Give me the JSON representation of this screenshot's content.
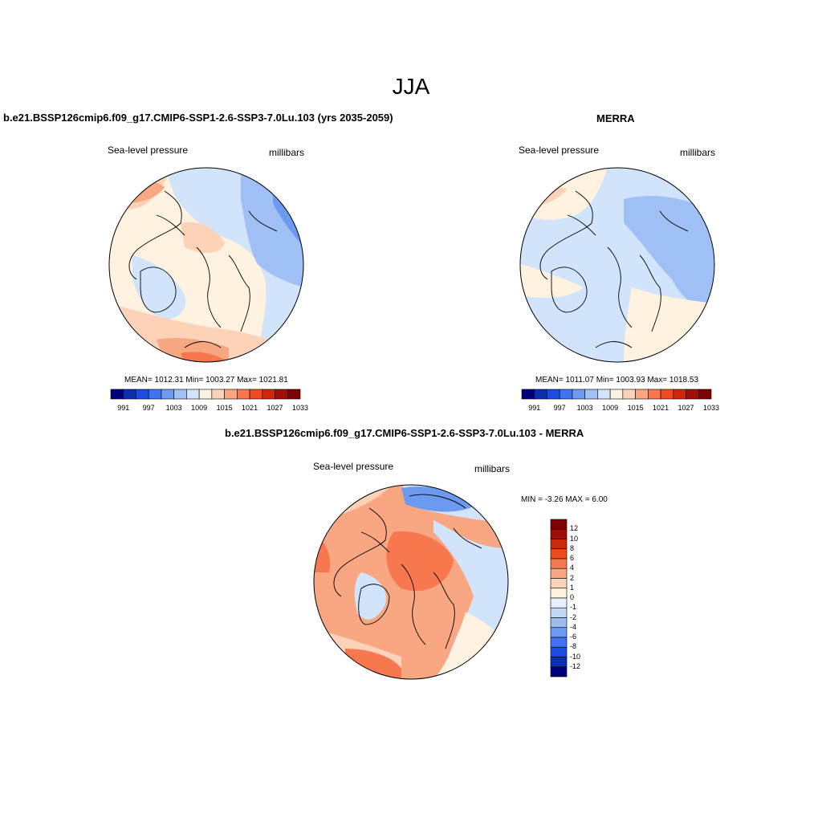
{
  "title": "JJA",
  "panels": {
    "model": {
      "title": "b.e21.BSSP126cmip6.f09_g17.CMIP6-SSP1-2.6-SSP3-7.0Lu.103 (yrs 2035-2059)",
      "variable": "Sea-level pressure",
      "units": "millibars",
      "stats": {
        "mean": "1012.31",
        "min": "1003.27",
        "max": "1021.81"
      },
      "stats_text": "MEAN= 1012.31  Min= 1003.27  Max= 1021.81"
    },
    "obs": {
      "title": "MERRA",
      "variable": "Sea-level pressure",
      "units": "millibars",
      "stats": {
        "mean": "1011.07",
        "min": "1003.93",
        "max": "1018.53"
      },
      "stats_text": "MEAN= 1011.07  Min= 1003.93  Max= 1018.53"
    },
    "diff": {
      "title": "b.e21.BSSP126cmip6.f09_g17.CMIP6-SSP1-2.6-SSP3-7.0Lu.103 - MERRA",
      "variable": "Sea-level pressure",
      "units": "millibars",
      "minmax_text": "MIN =  -3.26 MAX =   6.00",
      "stats": {
        "min": "-3.26",
        "max": "6.00"
      }
    }
  },
  "colorbar_abs": {
    "colors": [
      "#00007f",
      "#0a2fb0",
      "#1d4de0",
      "#3f72f0",
      "#6c9af0",
      "#a0c0f5",
      "#d1e4fb",
      "#fff2e0",
      "#fcd2b8",
      "#f9a682",
      "#f7784f",
      "#f04a1e",
      "#cc2a0a",
      "#a00f02",
      "#7f0000"
    ],
    "labels": [
      "991",
      "997",
      "1003",
      "1009",
      "1015",
      "1021",
      "1027",
      "1033"
    ]
  },
  "colorbar_diff": {
    "colors": [
      "#7f0000",
      "#a00f02",
      "#cc2a0a",
      "#f04a1e",
      "#f7784f",
      "#f9a682",
      "#fcd2b8",
      "#fff2e0",
      "#e6f0fc",
      "#c3d9f8",
      "#9bbcf3",
      "#6c9af0",
      "#3f72f0",
      "#1d4de0",
      "#0a2fb0",
      "#00007f"
    ],
    "labels": [
      "12",
      "10",
      "8",
      "6",
      "4",
      "2",
      "1",
      "0",
      "-1",
      "-2",
      "-4",
      "-6",
      "-8",
      "-10",
      "-12"
    ]
  }
}
